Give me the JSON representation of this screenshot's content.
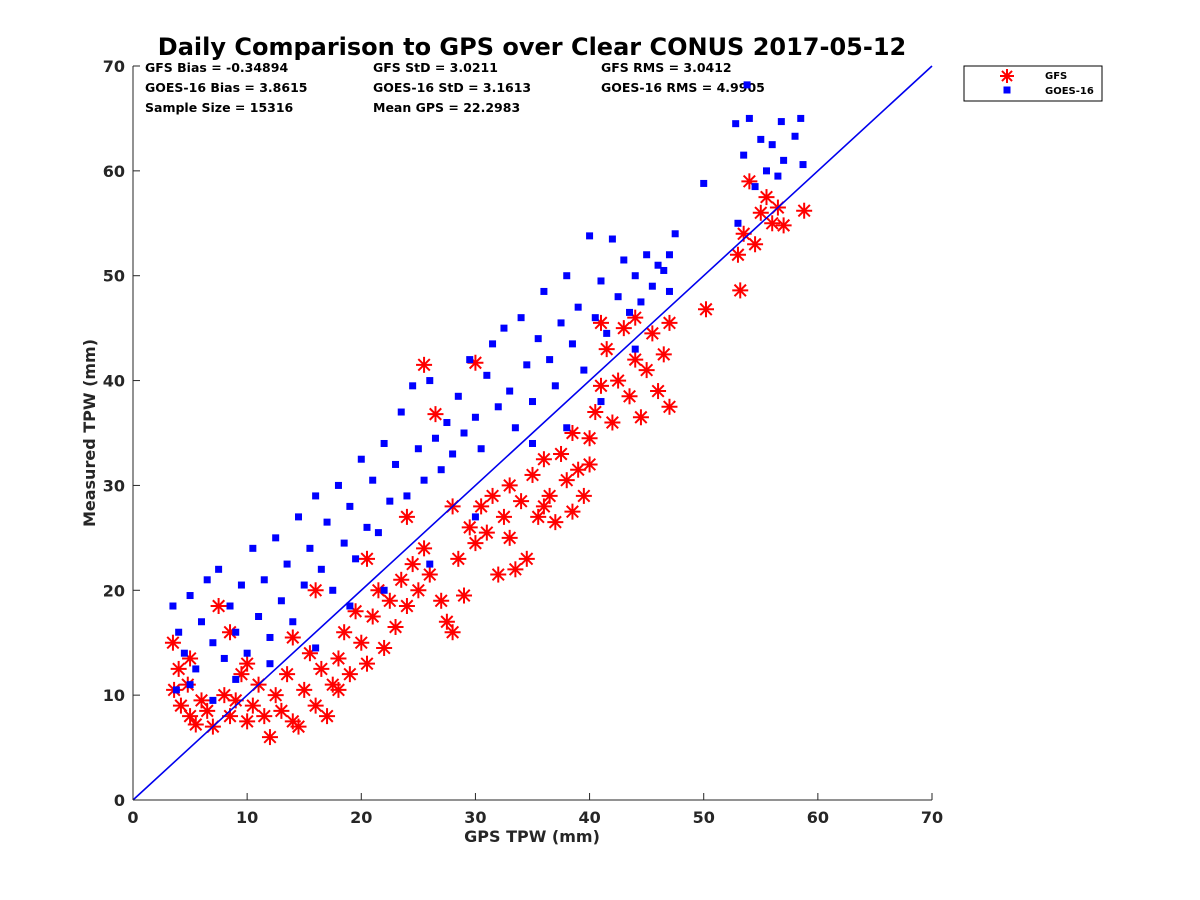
{
  "chart_data": {
    "type": "scatter",
    "title": "Daily Comparison to GPS over Clear CONUS 2017-05-12",
    "xlabel": "GPS TPW (mm)",
    "ylabel": "Measured TPW (mm)",
    "xlim": [
      0,
      70
    ],
    "ylim": [
      0,
      70
    ],
    "xticks": [
      "0",
      "10",
      "20",
      "30",
      "40",
      "50",
      "60",
      "70"
    ],
    "yticks": [
      "0",
      "10",
      "20",
      "30",
      "40",
      "50",
      "60",
      "70"
    ],
    "grid": false,
    "legend_position": "top-right outside",
    "stats": {
      "gfs_bias": "GFS Bias = -0.34894",
      "gfs_std": "GFS StD = 3.0211",
      "gfs_rms": "GFS RMS = 3.0412",
      "goes_bias": "GOES-16 Bias = 3.8615",
      "goes_std": "GOES-16 StD = 3.1613",
      "goes_rms": "GOES-16 RMS = 4.9905",
      "sample_size": "Sample Size = 15316",
      "mean_gps": "Mean GPS = 22.2983"
    },
    "reference_line": {
      "name": "1:1 line",
      "x": [
        0,
        70
      ],
      "y": [
        0,
        70
      ],
      "color": "#0000ee"
    },
    "series": [
      {
        "name": "GFS",
        "marker": "asterisk",
        "color": "#ff0000",
        "points": [
          [
            3.5,
            15.0
          ],
          [
            3.6,
            10.5
          ],
          [
            4.0,
            12.5
          ],
          [
            4.2,
            9.0
          ],
          [
            4.8,
            11.0
          ],
          [
            5.0,
            8.0
          ],
          [
            5.5,
            7.2
          ],
          [
            6.0,
            9.5
          ],
          [
            6.5,
            8.5
          ],
          [
            7.0,
            7.0
          ],
          [
            7.5,
            18.5
          ],
          [
            8.0,
            10.0
          ],
          [
            8.5,
            8.0
          ],
          [
            9.0,
            9.5
          ],
          [
            9.5,
            12.0
          ],
          [
            10.0,
            7.5
          ],
          [
            10.5,
            9.0
          ],
          [
            11.0,
            11.0
          ],
          [
            11.5,
            8.0
          ],
          [
            12.0,
            6.0
          ],
          [
            12.5,
            10.0
          ],
          [
            13.0,
            8.5
          ],
          [
            13.5,
            12.0
          ],
          [
            14.0,
            7.5
          ],
          [
            14.5,
            7.0
          ],
          [
            15.0,
            10.5
          ],
          [
            15.5,
            14.0
          ],
          [
            16.0,
            9.0
          ],
          [
            16.5,
            12.5
          ],
          [
            17.0,
            8.0
          ],
          [
            17.5,
            11.0
          ],
          [
            18.0,
            13.5
          ],
          [
            18.5,
            16.0
          ],
          [
            19.0,
            12.0
          ],
          [
            19.5,
            18.0
          ],
          [
            20.0,
            15.0
          ],
          [
            20.5,
            13.0
          ],
          [
            21.0,
            17.5
          ],
          [
            21.5,
            20.0
          ],
          [
            22.0,
            14.5
          ],
          [
            22.5,
            19.0
          ],
          [
            23.0,
            16.5
          ],
          [
            23.5,
            21.0
          ],
          [
            24.0,
            18.5
          ],
          [
            24.5,
            22.5
          ],
          [
            25.0,
            20.0
          ],
          [
            25.5,
            24.0
          ],
          [
            26.0,
            21.5
          ],
          [
            26.5,
            36.8
          ],
          [
            27.0,
            19.0
          ],
          [
            27.5,
            17.0
          ],
          [
            28.0,
            16.0
          ],
          [
            28.5,
            23.0
          ],
          [
            29.0,
            19.5
          ],
          [
            29.5,
            26.0
          ],
          [
            30.0,
            24.5
          ],
          [
            30.5,
            28.0
          ],
          [
            31.0,
            25.5
          ],
          [
            31.5,
            29.0
          ],
          [
            32.0,
            21.5
          ],
          [
            32.5,
            27.0
          ],
          [
            33.0,
            30.0
          ],
          [
            33.5,
            22.0
          ],
          [
            34.0,
            28.5
          ],
          [
            34.5,
            23.0
          ],
          [
            35.0,
            31.0
          ],
          [
            35.5,
            27.0
          ],
          [
            36.0,
            32.5
          ],
          [
            36.5,
            29.0
          ],
          [
            37.0,
            26.5
          ],
          [
            37.5,
            33.0
          ],
          [
            38.0,
            30.5
          ],
          [
            38.5,
            35.0
          ],
          [
            39.0,
            31.5
          ],
          [
            39.5,
            29.0
          ],
          [
            40.0,
            34.5
          ],
          [
            40.5,
            37.0
          ],
          [
            41.0,
            39.5
          ],
          [
            41.5,
            43.0
          ],
          [
            42.0,
            36.0
          ],
          [
            42.5,
            40.0
          ],
          [
            43.0,
            45.0
          ],
          [
            43.5,
            38.5
          ],
          [
            44.0,
            42.0
          ],
          [
            44.5,
            36.5
          ],
          [
            45.0,
            41.0
          ],
          [
            45.5,
            44.5
          ],
          [
            46.0,
            39.0
          ],
          [
            46.5,
            42.5
          ],
          [
            47.0,
            37.5
          ],
          [
            47.0,
            45.5
          ],
          [
            50.2,
            46.8
          ],
          [
            53.2,
            48.6
          ],
          [
            53.0,
            52.0
          ],
          [
            53.5,
            54.0
          ],
          [
            54.0,
            59.0
          ],
          [
            54.5,
            53.0
          ],
          [
            55.0,
            56.0
          ],
          [
            55.5,
            57.5
          ],
          [
            56.0,
            55.0
          ],
          [
            56.5,
            56.5
          ],
          [
            57.0,
            54.8
          ],
          [
            58.8,
            56.2
          ],
          [
            16.0,
            20.0
          ],
          [
            18.0,
            10.5
          ],
          [
            5.0,
            13.5
          ],
          [
            8.5,
            16.0
          ],
          [
            10.0,
            13.0
          ],
          [
            14.0,
            15.5
          ],
          [
            20.5,
            23.0
          ],
          [
            24.0,
            27.0
          ],
          [
            28.0,
            28.0
          ],
          [
            33.0,
            25.0
          ],
          [
            36.0,
            28.0
          ],
          [
            38.5,
            27.5
          ],
          [
            40.0,
            32.0
          ],
          [
            25.5,
            41.5
          ],
          [
            30.0,
            41.7
          ],
          [
            44.0,
            46.0
          ],
          [
            41.0,
            45.5
          ]
        ]
      },
      {
        "name": "GOES-16",
        "marker": "square",
        "color": "#0000ff",
        "points": [
          [
            3.5,
            18.5
          ],
          [
            4.0,
            16.0
          ],
          [
            4.5,
            14.0
          ],
          [
            5.0,
            19.5
          ],
          [
            5.5,
            12.5
          ],
          [
            6.0,
            17.0
          ],
          [
            6.5,
            21.0
          ],
          [
            7.0,
            15.0
          ],
          [
            7.5,
            22.0
          ],
          [
            8.0,
            13.5
          ],
          [
            8.5,
            18.5
          ],
          [
            9.0,
            16.0
          ],
          [
            9.5,
            20.5
          ],
          [
            10.0,
            14.0
          ],
          [
            10.5,
            24.0
          ],
          [
            11.0,
            17.5
          ],
          [
            11.5,
            21.0
          ],
          [
            12.0,
            15.5
          ],
          [
            12.5,
            25.0
          ],
          [
            13.0,
            19.0
          ],
          [
            13.5,
            22.5
          ],
          [
            14.0,
            17.0
          ],
          [
            14.5,
            27.0
          ],
          [
            15.0,
            20.5
          ],
          [
            15.5,
            24.0
          ],
          [
            16.0,
            29.0
          ],
          [
            16.5,
            22.0
          ],
          [
            17.0,
            26.5
          ],
          [
            17.5,
            20.0
          ],
          [
            18.0,
            30.0
          ],
          [
            18.5,
            24.5
          ],
          [
            19.0,
            28.0
          ],
          [
            19.5,
            23.0
          ],
          [
            20.0,
            32.5
          ],
          [
            20.5,
            26.0
          ],
          [
            21.0,
            30.5
          ],
          [
            21.5,
            25.5
          ],
          [
            22.0,
            34.0
          ],
          [
            22.5,
            28.5
          ],
          [
            23.0,
            32.0
          ],
          [
            23.5,
            37.0
          ],
          [
            24.0,
            29.0
          ],
          [
            24.5,
            39.5
          ],
          [
            25.0,
            33.5
          ],
          [
            25.5,
            30.5
          ],
          [
            26.0,
            40.0
          ],
          [
            26.5,
            34.5
          ],
          [
            27.0,
            31.5
          ],
          [
            27.5,
            36.0
          ],
          [
            28.0,
            33.0
          ],
          [
            28.5,
            38.5
          ],
          [
            29.0,
            35.0
          ],
          [
            29.5,
            42.0
          ],
          [
            30.0,
            36.5
          ],
          [
            30.5,
            33.5
          ],
          [
            31.0,
            40.5
          ],
          [
            31.5,
            43.5
          ],
          [
            32.0,
            37.5
          ],
          [
            32.5,
            45.0
          ],
          [
            33.0,
            39.0
          ],
          [
            33.5,
            35.5
          ],
          [
            34.0,
            46.0
          ],
          [
            34.5,
            41.5
          ],
          [
            35.0,
            38.0
          ],
          [
            35.5,
            44.0
          ],
          [
            36.0,
            48.5
          ],
          [
            36.5,
            42.0
          ],
          [
            37.0,
            39.5
          ],
          [
            37.5,
            45.5
          ],
          [
            38.0,
            50.0
          ],
          [
            38.5,
            43.5
          ],
          [
            39.0,
            47.0
          ],
          [
            39.5,
            41.0
          ],
          [
            40.0,
            53.8
          ],
          [
            40.5,
            46.0
          ],
          [
            41.0,
            49.5
          ],
          [
            41.5,
            44.5
          ],
          [
            42.0,
            53.5
          ],
          [
            42.5,
            48.0
          ],
          [
            43.0,
            51.5
          ],
          [
            43.5,
            46.5
          ],
          [
            44.0,
            50.0
          ],
          [
            44.5,
            47.5
          ],
          [
            45.0,
            52.0
          ],
          [
            45.5,
            49.0
          ],
          [
            46.0,
            51.0
          ],
          [
            46.5,
            50.5
          ],
          [
            47.0,
            48.5
          ],
          [
            47.0,
            52.0
          ],
          [
            47.5,
            54.0
          ],
          [
            50.0,
            58.8
          ],
          [
            52.8,
            64.5
          ],
          [
            53.0,
            55.0
          ],
          [
            53.5,
            61.5
          ],
          [
            53.8,
            68.2
          ],
          [
            54.0,
            65.0
          ],
          [
            54.5,
            58.5
          ],
          [
            55.0,
            63.0
          ],
          [
            55.5,
            60.0
          ],
          [
            56.0,
            62.5
          ],
          [
            56.5,
            59.5
          ],
          [
            56.8,
            64.7
          ],
          [
            57.0,
            61.0
          ],
          [
            58.5,
            65.0
          ],
          [
            58.7,
            60.6
          ],
          [
            58.0,
            63.3
          ],
          [
            3.8,
            10.5
          ],
          [
            5.0,
            11.0
          ],
          [
            7.0,
            9.5
          ],
          [
            9.0,
            11.5
          ],
          [
            12.0,
            13.0
          ],
          [
            16.0,
            14.5
          ],
          [
            19.0,
            18.5
          ],
          [
            22.0,
            20.0
          ],
          [
            26.0,
            22.5
          ],
          [
            30.0,
            27.0
          ],
          [
            35.0,
            34.0
          ],
          [
            38.0,
            35.5
          ],
          [
            41.0,
            38.0
          ],
          [
            44.0,
            43.0
          ]
        ]
      }
    ]
  }
}
